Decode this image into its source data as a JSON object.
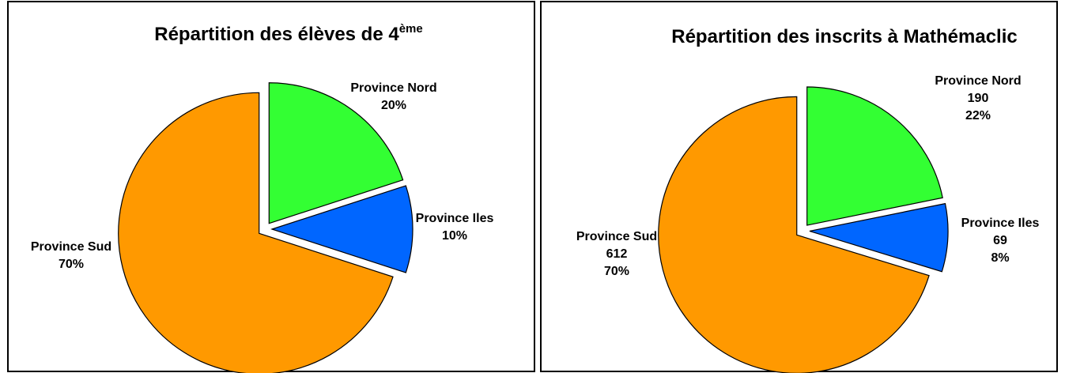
{
  "chart_data": [
    {
      "type": "pie",
      "title": "Répartition des élèves de 4",
      "title_superscript": "ème",
      "categories": [
        "Province Nord",
        "Province Iles",
        "Province Sud"
      ],
      "values": [
        20,
        10,
        70
      ],
      "value_labels": [
        "20%",
        "10%",
        "70%"
      ],
      "colors": [
        "#33ff33",
        "#0066ff",
        "#ff9900"
      ]
    },
    {
      "type": "pie",
      "title": "Répartition des inscrits à Mathémaclic",
      "categories": [
        "Province Nord",
        "Province Iles",
        "Province Sud"
      ],
      "values": [
        190,
        69,
        612
      ],
      "percents": [
        22,
        8,
        70
      ],
      "percent_labels": [
        "22%",
        "8%",
        "70%"
      ],
      "colors": [
        "#33ff33",
        "#0066ff",
        "#ff9900"
      ]
    }
  ]
}
